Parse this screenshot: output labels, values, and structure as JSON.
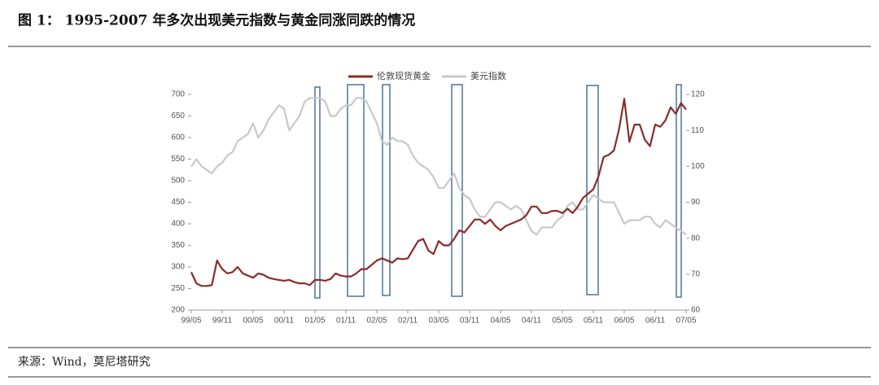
{
  "figure_title": "图 1：  1995-2007 年多次出现美元指数与黄金同涨同跌的情况",
  "source": "来源：Wind，莫尼塔研究",
  "chart_data": {
    "type": "line",
    "categories": [
      "99/05",
      null,
      null,
      null,
      null,
      null,
      "99/11",
      null,
      null,
      null,
      null,
      null,
      "00/05",
      null,
      null,
      null,
      null,
      null,
      "00/11",
      null,
      null,
      null,
      null,
      null,
      "01/05",
      null,
      null,
      null,
      null,
      null,
      "01/11",
      null,
      null,
      null,
      null,
      null,
      "02/05",
      null,
      null,
      null,
      null,
      null,
      "02/11",
      null,
      null,
      null,
      null,
      null,
      "03/05",
      null,
      null,
      null,
      null,
      null,
      "03/11",
      null,
      null,
      null,
      null,
      null,
      "04/05",
      null,
      null,
      null,
      null,
      null,
      "04/11",
      null,
      null,
      null,
      null,
      null,
      "05/05",
      null,
      null,
      null,
      null,
      null,
      "05/11",
      null,
      null,
      null,
      null,
      null,
      "06/05",
      null,
      null,
      null,
      null,
      null,
      "06/11",
      null,
      null,
      null,
      null,
      null,
      "07/05"
    ],
    "series": [
      {
        "name": "伦敦现货黄金",
        "color": "#8b2b2b",
        "values": [
          288,
          262,
          256,
          256,
          258,
          315,
          295,
          285,
          288,
          300,
          285,
          280,
          275,
          285,
          282,
          275,
          272,
          270,
          268,
          270,
          265,
          262,
          262,
          258,
          270,
          270,
          268,
          272,
          285,
          280,
          278,
          278,
          285,
          295,
          295,
          305,
          315,
          320,
          315,
          310,
          320,
          318,
          320,
          340,
          360,
          365,
          338,
          330,
          360,
          350,
          350,
          365,
          385,
          380,
          395,
          410,
          410,
          400,
          410,
          395,
          385,
          395,
          400,
          405,
          410,
          420,
          440,
          440,
          425,
          425,
          430,
          430,
          425,
          435,
          425,
          440,
          460,
          470,
          480,
          510,
          555,
          560,
          570,
          620,
          690,
          590,
          630,
          630,
          595,
          580,
          630,
          625,
          640,
          670,
          655,
          680,
          665
        ]
      },
      {
        "name": "美元指数",
        "color": "#c8c8c8",
        "axis": "y2",
        "values": [
          100,
          102,
          100,
          99,
          98,
          100,
          101,
          103,
          104,
          107,
          108,
          109,
          112,
          108,
          110,
          113,
          115,
          117,
          116,
          110,
          112,
          114,
          118,
          119,
          119,
          119,
          118,
          114,
          114,
          116,
          117,
          117,
          119,
          119,
          118,
          115,
          112,
          107,
          106,
          108,
          107,
          107,
          106,
          103,
          101,
          100,
          99,
          97,
          94,
          94,
          96,
          98,
          94,
          92,
          91,
          88,
          86,
          86,
          88,
          90,
          90,
          89,
          88,
          89,
          88,
          85,
          82,
          81,
          83,
          83,
          83,
          85,
          86,
          89,
          90,
          88,
          88,
          90,
          92,
          91,
          90,
          90,
          90,
          87,
          84,
          85,
          85,
          85,
          86,
          86,
          84,
          83,
          85,
          84,
          83,
          82,
          81
        ]
      }
    ],
    "ylim": [
      200,
      700
    ],
    "yticks": [
      200,
      250,
      300,
      350,
      400,
      450,
      500,
      550,
      600,
      650,
      700
    ],
    "y2lim": [
      60,
      120
    ],
    "y2ticks": [
      60,
      70,
      80,
      90,
      100,
      110,
      120
    ],
    "legend": "top"
  }
}
